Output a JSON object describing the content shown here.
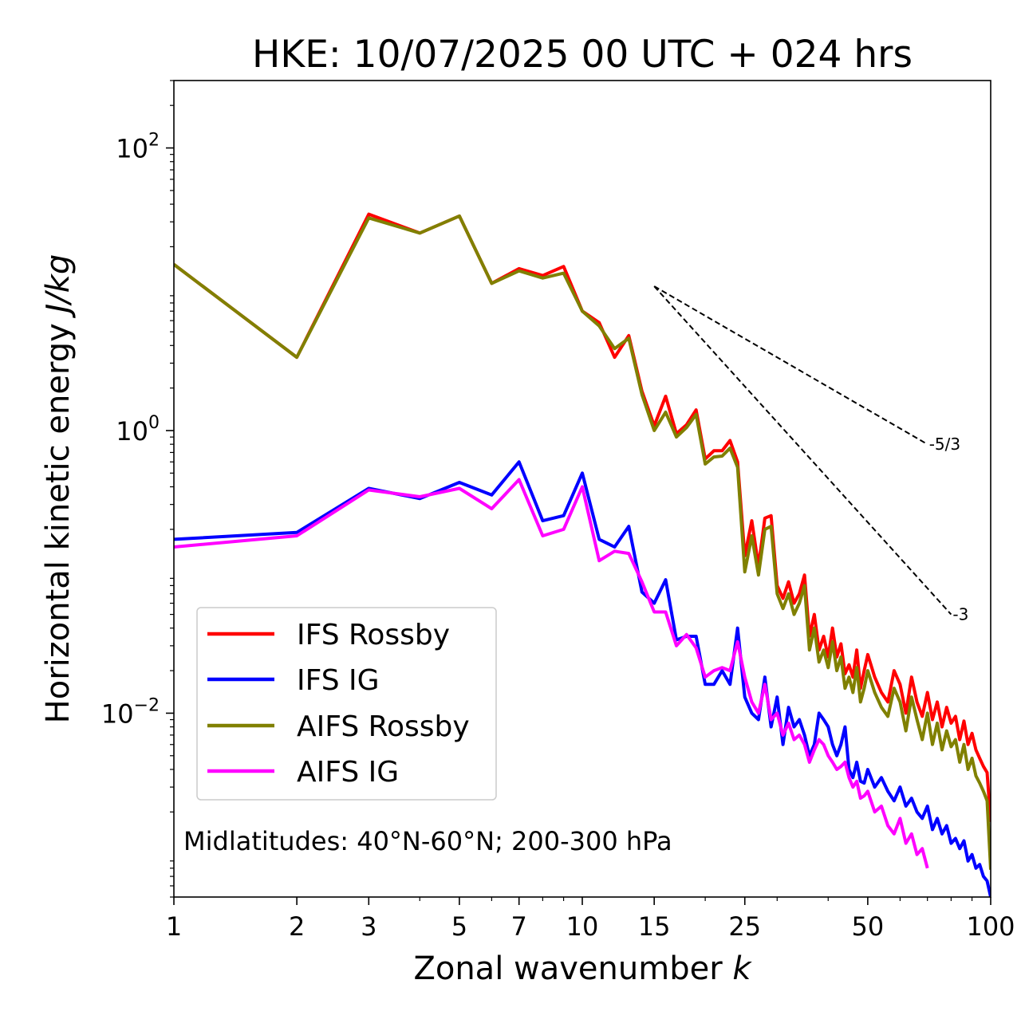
{
  "chart_data": {
    "type": "line",
    "title": "HKE: 10/07/2025 00 UTC + 024 hrs",
    "xlabel": "Zonal wavenumber",
    "xlabel_var": "k",
    "ylabel": "Horizontal kinetic energy",
    "ylabel_unit": "J/kg",
    "x_scale": "log",
    "y_scale": "log",
    "xlim": [
      1,
      100
    ],
    "ylim": [
      0.0005,
      300
    ],
    "x_ticks": [
      1,
      2,
      3,
      5,
      7,
      10,
      15,
      25,
      50,
      100
    ],
    "x_tick_labels": [
      "1",
      "2",
      "3",
      "5",
      "7",
      "10",
      "15",
      "25",
      "50",
      "100"
    ],
    "y_ticks": [
      0.01,
      1,
      100
    ],
    "y_tick_bases": [
      "10",
      "10",
      "10"
    ],
    "y_tick_exps": [
      "−2",
      "0",
      "2"
    ],
    "annotation": "Midlatitudes: 40°N-60°N; 200-300 hPa",
    "legend_position": "lower-left",
    "reference_slopes": [
      {
        "label": "-5/3",
        "x_start": 15,
        "y_start": 10.5,
        "x_end": 70,
        "y_end": 0.8
      },
      {
        "label": "-3",
        "x_start": 15,
        "y_start": 10.5,
        "x_end": 80,
        "y_end": 0.05
      }
    ],
    "series": [
      {
        "name": "IFS Rossby",
        "color": "#ff0000",
        "x": [
          1,
          2,
          3,
          4,
          5,
          6,
          7,
          8,
          9,
          10,
          11,
          12,
          13,
          14,
          15,
          16,
          17,
          18,
          19,
          20,
          21,
          22,
          23,
          24,
          25,
          26,
          27,
          28,
          29,
          30,
          31,
          32,
          33,
          34,
          35,
          36,
          37,
          38,
          39,
          40,
          41,
          42,
          43,
          44,
          45,
          46,
          47,
          48,
          49,
          50,
          52,
          54,
          56,
          58,
          60,
          62,
          64,
          66,
          68,
          70,
          72,
          74,
          76,
          78,
          80,
          82,
          84,
          86,
          88,
          90,
          92,
          94,
          96,
          98,
          100
        ],
        "y": [
          15,
          3.3,
          34,
          25,
          33,
          11,
          14,
          12.5,
          14.5,
          7,
          5.8,
          3.3,
          4.7,
          1.9,
          1.08,
          1.75,
          0.95,
          1.1,
          1.4,
          0.63,
          0.72,
          0.72,
          0.85,
          0.6,
          0.13,
          0.23,
          0.11,
          0.24,
          0.25,
          0.08,
          0.065,
          0.085,
          0.06,
          0.07,
          0.095,
          0.035,
          0.05,
          0.028,
          0.035,
          0.025,
          0.04,
          0.025,
          0.031,
          0.019,
          0.022,
          0.018,
          0.028,
          0.015,
          0.02,
          0.026,
          0.018,
          0.014,
          0.012,
          0.02,
          0.016,
          0.01,
          0.018,
          0.012,
          0.0095,
          0.014,
          0.009,
          0.012,
          0.008,
          0.011,
          0.0085,
          0.0095,
          0.0065,
          0.0088,
          0.006,
          0.0072,
          0.0055,
          0.0048,
          0.0042,
          0.0038,
          0.0017
        ]
      },
      {
        "name": "IFS IG",
        "color": "#0000ff",
        "x": [
          1,
          2,
          3,
          4,
          5,
          6,
          7,
          8,
          9,
          10,
          11,
          12,
          13,
          14,
          15,
          16,
          17,
          18,
          19,
          20,
          21,
          22,
          23,
          24,
          25,
          26,
          27,
          28,
          29,
          30,
          31,
          32,
          33,
          34,
          35,
          36,
          37,
          38,
          39,
          40,
          41,
          42,
          43,
          44,
          45,
          46,
          47,
          48,
          49,
          50,
          52,
          54,
          56,
          58,
          60,
          62,
          64,
          66,
          68,
          70,
          72,
          74,
          76,
          78,
          80,
          82,
          84,
          86,
          88,
          90,
          92,
          94,
          96,
          98,
          100
        ],
        "y": [
          0.17,
          0.19,
          0.39,
          0.33,
          0.43,
          0.35,
          0.6,
          0.23,
          0.25,
          0.5,
          0.17,
          0.15,
          0.21,
          0.072,
          0.06,
          0.088,
          0.033,
          0.035,
          0.035,
          0.016,
          0.016,
          0.02,
          0.016,
          0.04,
          0.013,
          0.01,
          0.009,
          0.018,
          0.008,
          0.013,
          0.006,
          0.011,
          0.008,
          0.009,
          0.007,
          0.005,
          0.006,
          0.01,
          0.009,
          0.008,
          0.006,
          0.005,
          0.006,
          0.008,
          0.004,
          0.0035,
          0.0045,
          0.0033,
          0.0032,
          0.004,
          0.003,
          0.0035,
          0.0028,
          0.0024,
          0.003,
          0.0022,
          0.0025,
          0.002,
          0.0018,
          0.0022,
          0.0015,
          0.0018,
          0.0014,
          0.0016,
          0.0012,
          0.0013,
          0.0011,
          0.00125,
          0.0009,
          0.001,
          0.0008,
          0.00085,
          0.0007,
          0.00065,
          0.0005
        ]
      },
      {
        "name": "AIFS Rossby",
        "color": "#808000",
        "x": [
          1,
          2,
          3,
          4,
          5,
          6,
          7,
          8,
          9,
          10,
          11,
          12,
          13,
          14,
          15,
          16,
          17,
          18,
          19,
          20,
          21,
          22,
          23,
          24,
          25,
          26,
          27,
          28,
          29,
          30,
          31,
          32,
          33,
          34,
          35,
          36,
          37,
          38,
          39,
          40,
          41,
          42,
          43,
          44,
          45,
          46,
          47,
          48,
          49,
          50,
          52,
          54,
          56,
          58,
          60,
          62,
          64,
          66,
          68,
          70,
          72,
          74,
          76,
          78,
          80,
          82,
          84,
          86,
          88,
          90,
          92,
          94,
          96,
          98,
          100
        ],
        "y": [
          15,
          3.3,
          32,
          25,
          33,
          11,
          13.5,
          12,
          13,
          7,
          5.5,
          3.8,
          4.5,
          1.8,
          1.0,
          1.35,
          0.9,
          1.05,
          1.3,
          0.58,
          0.65,
          0.66,
          0.75,
          0.55,
          0.1,
          0.18,
          0.095,
          0.2,
          0.21,
          0.07,
          0.055,
          0.07,
          0.05,
          0.06,
          0.08,
          0.028,
          0.04,
          0.023,
          0.028,
          0.021,
          0.032,
          0.02,
          0.025,
          0.015,
          0.018,
          0.014,
          0.021,
          0.012,
          0.015,
          0.02,
          0.014,
          0.011,
          0.0095,
          0.015,
          0.012,
          0.0075,
          0.013,
          0.009,
          0.0065,
          0.01,
          0.006,
          0.0085,
          0.0055,
          0.0075,
          0.0058,
          0.0065,
          0.0045,
          0.006,
          0.004,
          0.0048,
          0.0036,
          0.0032,
          0.0028,
          0.0024,
          0.00078
        ]
      },
      {
        "name": "AIFS IG",
        "color": "#ff00ff",
        "x": [
          1,
          2,
          3,
          4,
          5,
          6,
          7,
          8,
          9,
          10,
          11,
          12,
          13,
          14,
          15,
          16,
          17,
          18,
          19,
          20,
          21,
          22,
          23,
          24,
          25,
          26,
          27,
          28,
          29,
          30,
          31,
          32,
          33,
          34,
          35,
          36,
          37,
          38,
          39,
          40,
          41,
          42,
          43,
          44,
          45,
          46,
          47,
          48,
          49,
          50,
          52,
          54,
          56,
          58,
          60,
          62,
          64,
          66,
          68,
          70
        ],
        "y": [
          0.15,
          0.18,
          0.38,
          0.34,
          0.39,
          0.28,
          0.45,
          0.18,
          0.2,
          0.4,
          0.12,
          0.14,
          0.135,
          0.085,
          0.052,
          0.052,
          0.03,
          0.036,
          0.029,
          0.018,
          0.02,
          0.021,
          0.02,
          0.032,
          0.018,
          0.012,
          0.01,
          0.016,
          0.009,
          0.01,
          0.007,
          0.0085,
          0.0065,
          0.007,
          0.006,
          0.0045,
          0.0055,
          0.0065,
          0.006,
          0.005,
          0.0045,
          0.004,
          0.0042,
          0.0045,
          0.0035,
          0.003,
          0.0033,
          0.0025,
          0.0026,
          0.0028,
          0.002,
          0.0022,
          0.0016,
          0.0014,
          0.0018,
          0.0012,
          0.0014,
          0.001,
          0.0011,
          0.0008
        ]
      }
    ]
  }
}
